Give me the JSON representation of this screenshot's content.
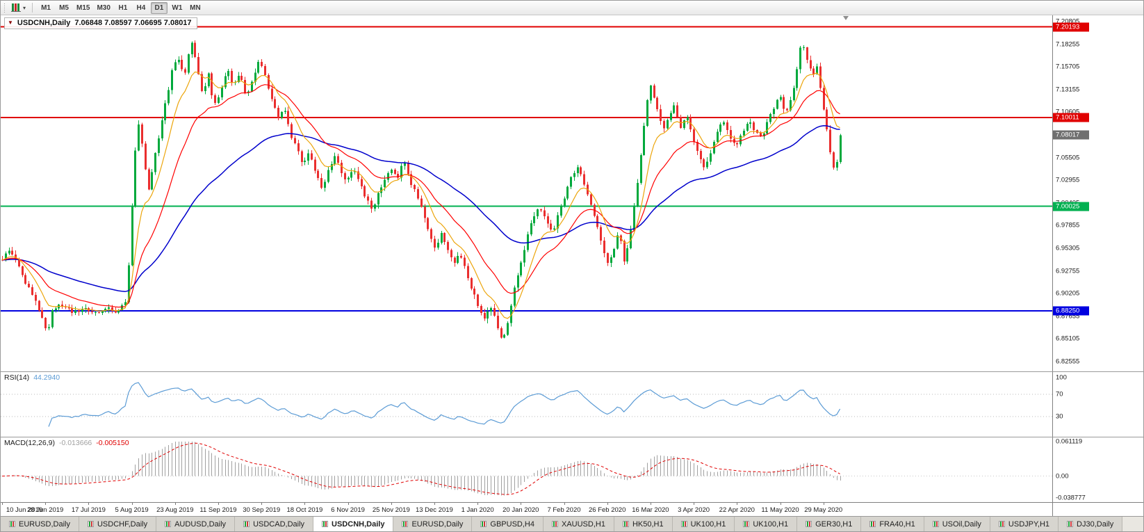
{
  "toolbar": {
    "timeframes": [
      {
        "label": "M1",
        "active": false
      },
      {
        "label": "M5",
        "active": false
      },
      {
        "label": "M15",
        "active": false
      },
      {
        "label": "M30",
        "active": false
      },
      {
        "label": "H1",
        "active": false
      },
      {
        "label": "H4",
        "active": false
      },
      {
        "label": "D1",
        "active": true
      },
      {
        "label": "W1",
        "active": false
      },
      {
        "label": "MN",
        "active": false
      }
    ]
  },
  "chart": {
    "title": "USDCNH,Daily",
    "ohlc_text": "7.06848 7.08597 7.06695 7.08017"
  },
  "rsi": {
    "label": "RSI(14)",
    "value": "44.2940",
    "period": 14,
    "color": "#5B9BD5",
    "levels": [
      {
        "label": "100",
        "value": 100,
        "line": false
      },
      {
        "label": "70",
        "value": 70,
        "line": true
      },
      {
        "label": "30",
        "value": 30,
        "line": true
      }
    ]
  },
  "macd": {
    "label": "MACD(12,26,9)",
    "value_main": "-0.013666",
    "value_signal": "-0.005150",
    "fast": 12,
    "slow": 26,
    "signal": 9,
    "hist_color": "#a0a0a0",
    "signal_color": "#E00000",
    "axis_labels": [
      {
        "label": "0.061119",
        "value": 0.061119
      },
      {
        "label": "0.00",
        "value": 0
      },
      {
        "label": "-0.038777",
        "value": -0.038777
      }
    ]
  },
  "tabs": [
    {
      "label": "EURUSD,Daily",
      "active": false
    },
    {
      "label": "USDCHF,Daily",
      "active": false
    },
    {
      "label": "AUDUSD,Daily",
      "active": false
    },
    {
      "label": "USDCAD,Daily",
      "active": false
    },
    {
      "label": "USDCNH,Daily",
      "active": true
    },
    {
      "label": "EURUSD,Daily",
      "active": false
    },
    {
      "label": "GBPUSD,H4",
      "active": false
    },
    {
      "label": "XAUUSD,H1",
      "active": false
    },
    {
      "label": "HK50,H1",
      "active": false
    },
    {
      "label": "UK100,H1",
      "active": false
    },
    {
      "label": "UK100,H1",
      "active": false
    },
    {
      "label": "GER30,H1",
      "active": false
    },
    {
      "label": "FRA40,H1",
      "active": false
    },
    {
      "label": "USOil,Daily",
      "active": false
    },
    {
      "label": "USDJPY,H1",
      "active": false
    },
    {
      "label": "DJ30,Daily",
      "active": false
    }
  ],
  "chart_data": {
    "type": "candlestick",
    "symbol": "USDCNH",
    "timeframe": "Daily",
    "last_close": 7.08017,
    "candle_count": 253,
    "data_fraction": 0.8,
    "label_every": 13,
    "price_range": {
      "top": 7.215,
      "bottom": 6.8145
    },
    "colors": {
      "up": "#00A93C",
      "down": "#EA2E2E"
    },
    "y_ticks": [
      "7.20805",
      "7.18255",
      "7.15705",
      "7.13155",
      "7.10605",
      "7.08055",
      "7.05505",
      "7.02955",
      "7.00405",
      "6.97855",
      "6.95305",
      "6.92755",
      "6.90205",
      "6.87655",
      "6.85105",
      "6.82555"
    ],
    "x_dates": [
      "10 Jun 2019",
      "28 Jun 2019",
      "17 Jul 2019",
      "5 Aug 2019",
      "23 Aug 2019",
      "11 Sep 2019",
      "30 Sep 2019",
      "18 Oct 2019",
      "6 Nov 2019",
      "25 Nov 2019",
      "13 Dec 2019",
      "1 Jan 2020",
      "20 Jan 2020",
      "7 Feb 2020",
      "26 Feb 2020",
      "16 Mar 2020",
      "3 Apr 2020",
      "22 Apr 2020",
      "11 May 2020",
      "29 May 2020"
    ],
    "hlines": [
      {
        "price": 7.20193,
        "label": "7.20193",
        "color": "#E00000",
        "stroke_width": 2
      },
      {
        "price": 7.10011,
        "label": "7.10011",
        "color": "#E00000",
        "stroke_width": 2
      },
      {
        "price": 7.00025,
        "label": "7.00025",
        "color": "#00B050",
        "stroke_width": 2
      },
      {
        "price": 6.8825,
        "label": "6.88250",
        "color": "#0000E0",
        "stroke_width": 2
      }
    ],
    "current_price_badge": {
      "price": 7.08017,
      "label": "7.08017",
      "color": "#707070"
    },
    "moving_averages": [
      {
        "period": 60,
        "color": "#0000CC",
        "width": 1.5
      },
      {
        "period": 21,
        "color": "#FF0000",
        "width": 1.2
      },
      {
        "period": 9,
        "color": "#ECA50B",
        "width": 1.2
      }
    ],
    "price_path": [
      [
        0.0,
        6.94
      ],
      [
        0.01,
        6.952
      ],
      [
        0.022,
        6.928
      ],
      [
        0.034,
        6.902
      ],
      [
        0.046,
        6.88
      ],
      [
        0.054,
        6.856
      ],
      [
        0.06,
        6.884
      ],
      [
        0.072,
        6.89
      ],
      [
        0.085,
        6.879
      ],
      [
        0.098,
        6.888
      ],
      [
        0.11,
        6.88
      ],
      [
        0.124,
        6.887
      ],
      [
        0.136,
        6.88
      ],
      [
        0.148,
        6.892
      ],
      [
        0.153,
        6.965
      ],
      [
        0.158,
        7.058
      ],
      [
        0.163,
        7.092
      ],
      [
        0.169,
        7.058
      ],
      [
        0.174,
        7.015
      ],
      [
        0.181,
        7.05
      ],
      [
        0.189,
        7.092
      ],
      [
        0.196,
        7.122
      ],
      [
        0.204,
        7.158
      ],
      [
        0.211,
        7.168
      ],
      [
        0.217,
        7.146
      ],
      [
        0.225,
        7.188
      ],
      [
        0.232,
        7.158
      ],
      [
        0.239,
        7.126
      ],
      [
        0.246,
        7.148
      ],
      [
        0.253,
        7.112
      ],
      [
        0.261,
        7.132
      ],
      [
        0.269,
        7.152
      ],
      [
        0.276,
        7.136
      ],
      [
        0.284,
        7.152
      ],
      [
        0.291,
        7.122
      ],
      [
        0.299,
        7.146
      ],
      [
        0.306,
        7.162
      ],
      [
        0.314,
        7.148
      ],
      [
        0.321,
        7.122
      ],
      [
        0.329,
        7.098
      ],
      [
        0.336,
        7.112
      ],
      [
        0.344,
        7.082
      ],
      [
        0.351,
        7.065
      ],
      [
        0.359,
        7.048
      ],
      [
        0.366,
        7.062
      ],
      [
        0.374,
        7.038
      ],
      [
        0.381,
        7.02
      ],
      [
        0.389,
        7.04
      ],
      [
        0.396,
        7.058
      ],
      [
        0.404,
        7.04
      ],
      [
        0.411,
        7.028
      ],
      [
        0.419,
        7.044
      ],
      [
        0.426,
        7.028
      ],
      [
        0.434,
        7.01
      ],
      [
        0.441,
        6.996
      ],
      [
        0.449,
        7.016
      ],
      [
        0.456,
        7.032
      ],
      [
        0.464,
        7.044
      ],
      [
        0.471,
        7.028
      ],
      [
        0.479,
        7.054
      ],
      [
        0.486,
        7.03
      ],
      [
        0.494,
        7.015
      ],
      [
        0.501,
        6.998
      ],
      [
        0.509,
        6.972
      ],
      [
        0.516,
        6.955
      ],
      [
        0.524,
        6.968
      ],
      [
        0.531,
        6.95
      ],
      [
        0.539,
        6.935
      ],
      [
        0.546,
        6.948
      ],
      [
        0.554,
        6.925
      ],
      [
        0.561,
        6.905
      ],
      [
        0.569,
        6.885
      ],
      [
        0.576,
        6.872
      ],
      [
        0.583,
        6.888
      ],
      [
        0.59,
        6.868
      ],
      [
        0.597,
        6.85
      ],
      [
        0.604,
        6.872
      ],
      [
        0.611,
        6.908
      ],
      [
        0.619,
        6.935
      ],
      [
        0.626,
        6.965
      ],
      [
        0.634,
        6.988
      ],
      [
        0.641,
        7.0
      ],
      [
        0.649,
        6.984
      ],
      [
        0.656,
        6.97
      ],
      [
        0.664,
        6.992
      ],
      [
        0.671,
        7.012
      ],
      [
        0.679,
        7.032
      ],
      [
        0.686,
        7.044
      ],
      [
        0.694,
        7.026
      ],
      [
        0.701,
        7.008
      ],
      [
        0.709,
        6.982
      ],
      [
        0.716,
        6.958
      ],
      [
        0.723,
        6.932
      ],
      [
        0.729,
        6.95
      ],
      [
        0.736,
        6.972
      ],
      [
        0.742,
        6.936
      ],
      [
        0.748,
        6.962
      ],
      [
        0.755,
        7.005
      ],
      [
        0.762,
        7.058
      ],
      [
        0.768,
        7.112
      ],
      [
        0.774,
        7.138
      ],
      [
        0.781,
        7.11
      ],
      [
        0.788,
        7.086
      ],
      [
        0.795,
        7.1
      ],
      [
        0.802,
        7.114
      ],
      [
        0.809,
        7.088
      ],
      [
        0.816,
        7.104
      ],
      [
        0.823,
        7.082
      ],
      [
        0.831,
        7.058
      ],
      [
        0.838,
        7.04
      ],
      [
        0.846,
        7.062
      ],
      [
        0.853,
        7.084
      ],
      [
        0.861,
        7.096
      ],
      [
        0.868,
        7.08
      ],
      [
        0.876,
        7.068
      ],
      [
        0.883,
        7.084
      ],
      [
        0.891,
        7.098
      ],
      [
        0.898,
        7.086
      ],
      [
        0.906,
        7.076
      ],
      [
        0.913,
        7.094
      ],
      [
        0.921,
        7.112
      ],
      [
        0.928,
        7.124
      ],
      [
        0.934,
        7.104
      ],
      [
        0.941,
        7.122
      ],
      [
        0.948,
        7.15
      ],
      [
        0.954,
        7.192
      ],
      [
        0.96,
        7.164
      ],
      [
        0.966,
        7.148
      ],
      [
        0.972,
        7.156
      ],
      [
        0.978,
        7.126
      ],
      [
        0.984,
        7.086
      ],
      [
        0.989,
        7.056
      ],
      [
        0.994,
        7.034
      ],
      [
        1.0,
        7.08
      ]
    ]
  }
}
